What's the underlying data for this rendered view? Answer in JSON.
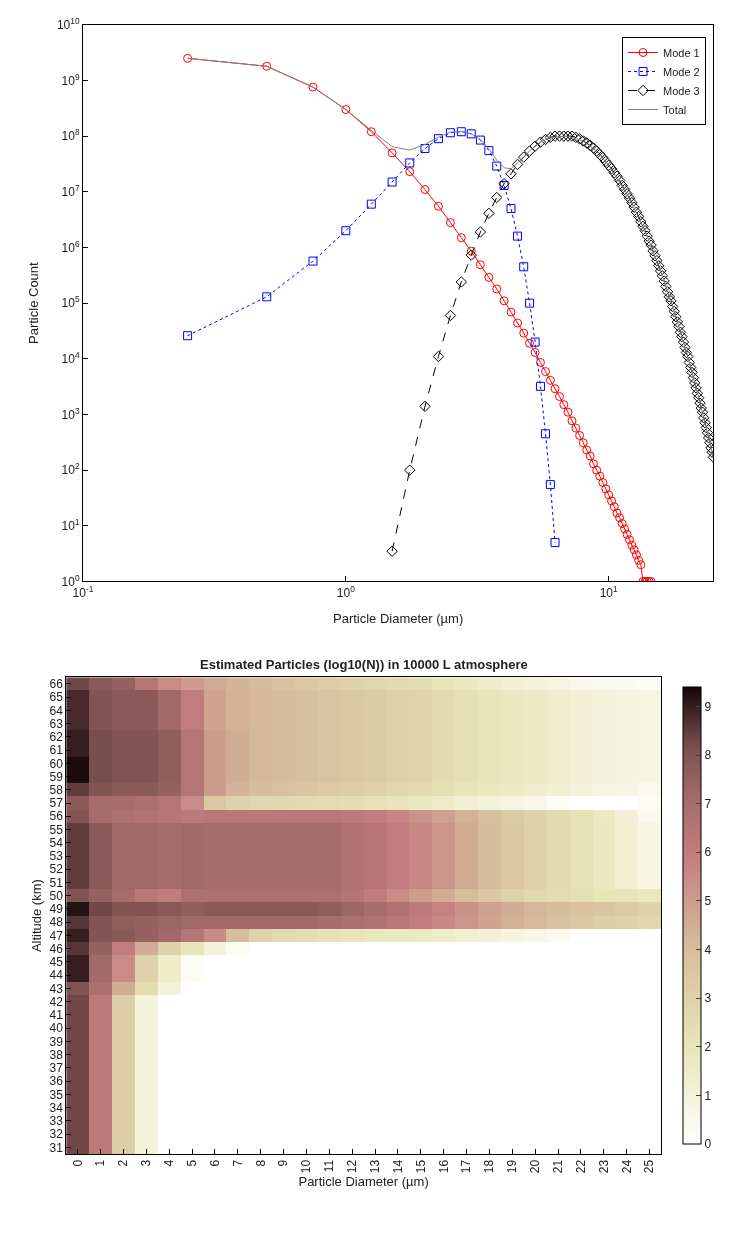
{
  "chart_data": [
    {
      "type": "line",
      "xlabel": "Particle Diameter (µm)",
      "ylabel": "Particle Count",
      "log": "xy",
      "legend": "top right",
      "xlim": [
        0.1,
        25
      ],
      "ylim": [
        1,
        10000000000
      ],
      "xticks": [
        {
          "value": 0.1,
          "label": "10$^{-1}$"
        },
        {
          "value": 1,
          "label": "10$^{0}$"
        },
        {
          "value": 10,
          "label": "10$^{1}$"
        }
      ],
      "yticks": [
        {
          "value": 1,
          "label": "10$^{0}$"
        },
        {
          "value": 10,
          "label": "10$^{1}$"
        },
        {
          "value": 100,
          "label": "10$^{2}$"
        },
        {
          "value": 1000,
          "label": "10$^{3}$"
        },
        {
          "value": 10000,
          "label": "10$^{4}$"
        },
        {
          "value": 100000,
          "label": "10$^{5}$"
        },
        {
          "value": 1000000,
          "label": "10$^{6}$"
        },
        {
          "value": 10000000,
          "label": "10$^{7}$"
        },
        {
          "value": 100000000,
          "label": "10$^{8}$"
        },
        {
          "value": 1000000000,
          "label": "10$^{9}$"
        },
        {
          "value": 10000000000,
          "label": "10$^{10}$"
        }
      ],
      "series": [
        {
          "name": "Mode 1",
          "color": "#ff0000",
          "marker": "circle",
          "line_style": "solid",
          "x": [
            0.25,
            0.5,
            0.75,
            1.0,
            1.25,
            1.5,
            1.75,
            2.0,
            2.25,
            2.5,
            2.75,
            3.0,
            3.25,
            3.5,
            3.75,
            4.0,
            4.25,
            4.5,
            4.75,
            5.0,
            5.25,
            5.5,
            5.75,
            6.0,
            6.25,
            6.5,
            6.75,
            7.0,
            7.25,
            7.5,
            7.75,
            8.0,
            8.25,
            8.5,
            8.75,
            9.0,
            9.25,
            9.5,
            9.75,
            10.0,
            10.25,
            10.5,
            10.75,
            11.0,
            11.25,
            11.5,
            11.75,
            12.0,
            12.25,
            12.5,
            12.75,
            13.0,
            13.25,
            13.5,
            13.75,
            14.0,
            14.25,
            14.5
          ],
          "values": [
            2500000000,
            1800000000,
            760000000,
            300000000,
            120000000,
            50000000,
            23000000,
            11000000,
            5500000,
            2800000,
            1500000,
            860000,
            490000,
            290000,
            180000,
            110000,
            69000,
            44000,
            29000,
            19000,
            13000,
            8600,
            5900,
            4100,
            2900,
            2100,
            1500,
            1100,
            770,
            570,
            420,
            310,
            230,
            180,
            130,
            100,
            78,
            60,
            46,
            36,
            28,
            22,
            17,
            14,
            11,
            8.8,
            7.0,
            5.6,
            4.5,
            3.7,
            3.0,
            2.4,
            2.0,
            1,
            1,
            1,
            1,
            1
          ]
        },
        {
          "name": "Mode 2",
          "color": "#0000ff",
          "marker": "square",
          "line_style": "dotted",
          "x": [
            0.25,
            0.5,
            0.75,
            1.0,
            1.25,
            1.5,
            1.75,
            2.0,
            2.25,
            2.5,
            2.75,
            3.0,
            3.25,
            3.5,
            3.75,
            4.0,
            4.25,
            4.5,
            4.75,
            5.0,
            5.25,
            5.5,
            5.75,
            6.0,
            6.25
          ],
          "values": [
            26000,
            130000,
            570000,
            2000000,
            6000000,
            15000000,
            33000000,
            60000000,
            90000000,
            115000000,
            120000000,
            110000000,
            85000000,
            55000000,
            29000000,
            13000000,
            5000000,
            1600000,
            450000,
            100000,
            20000,
            3200,
            450,
            55,
            5
          ]
        },
        {
          "name": "Mode 3",
          "color": "#000000",
          "marker": "diamond",
          "line_style": "dashed",
          "x": [
            1.5,
            1.75,
            2.0,
            2.25,
            2.5,
            2.75,
            3.0,
            3.25,
            3.5,
            3.75,
            4.0,
            4.25,
            4.5,
            4.75,
            5.0,
            5.25,
            5.5,
            5.75,
            6.0,
            6.25,
            6.5,
            6.75,
            7.0,
            7.25,
            7.5,
            7.75,
            8.0,
            8.25,
            8.5,
            8.75,
            9.0,
            9.25,
            9.5,
            9.75,
            10.0,
            10.25,
            10.5,
            10.75,
            11.0,
            11.25,
            11.5,
            11.75,
            12.0,
            12.25,
            12.5,
            12.75,
            13.0,
            13.25,
            13.5,
            13.75,
            14.0,
            14.25,
            14.5,
            14.75,
            15.0,
            15.25,
            15.5,
            15.75,
            16.0,
            16.25,
            16.5,
            16.75,
            17.0,
            17.25,
            17.5,
            17.75,
            18.0,
            18.25,
            18.5,
            18.75,
            19.0,
            19.25,
            19.5,
            19.75,
            20.0,
            20.25,
            20.5,
            20.75,
            21.0,
            21.25,
            21.5,
            21.75,
            22.0,
            22.25,
            22.5,
            22.75,
            23.0,
            23.25,
            23.5,
            23.75,
            24.0,
            24.25,
            24.5,
            24.75,
            25.0
          ],
          "values": [
            3.5,
            100,
            1400,
            11000,
            60000,
            240000,
            730000,
            1900000,
            4100000,
            7900000,
            14000000,
            21000000,
            31000000,
            42000000,
            54000000,
            66000000,
            78000000,
            87000000,
            95000000,
            100000000,
            100000000,
            100000000,
            100000000,
            100000000,
            95000000,
            89000000,
            82000000,
            75000000,
            68000000,
            61000000,
            54000000,
            47000000,
            41000000,
            35000000,
            30000000,
            26000000,
            22000000,
            19000000,
            16000000,
            13000000,
            11000000,
            9200000,
            7700000,
            6400000,
            5300000,
            4300000,
            3600000,
            2900000,
            2400000,
            2000000,
            1600000,
            1300000,
            1100000,
            870000,
            710000,
            580000,
            470000,
            380000,
            310000,
            250000,
            200000,
            160000,
            130000,
            110000,
            87000,
            71000,
            57000,
            46000,
            38000,
            30000,
            25000,
            20000,
            16000,
            13000,
            11000,
            8600,
            7000,
            5700,
            4600,
            3700,
            3000,
            2400,
            2000,
            1600,
            1300,
            1100,
            870,
            710,
            580,
            470,
            380,
            310,
            250,
            210,
            170
          ]
        },
        {
          "name": "Total",
          "color": "#808080",
          "marker": "none",
          "line_style": "solid",
          "x": [
            0.25,
            0.5,
            0.75,
            1.0,
            1.25,
            1.5,
            1.75,
            2.0,
            2.25,
            2.5,
            2.75,
            3.0,
            3.25,
            3.5,
            3.75,
            4.0,
            4.25,
            4.5,
            4.75,
            5.0,
            5.5,
            6.0,
            7.0,
            8.0,
            9.0,
            10.0,
            12.0,
            14.0,
            16.0,
            18.0,
            20.0,
            22.0,
            24.0,
            25.0
          ],
          "values": [
            2500000000,
            1800000000,
            760000000,
            300000000,
            126000000,
            65000000,
            56000000,
            71000000,
            96000000,
            118000000,
            122000000,
            110000000,
            87000000,
            59000000,
            37000000,
            27000000,
            26000000,
            33000000,
            42000000,
            54000000,
            78000000,
            95000000,
            100000000,
            82000000,
            54000000,
            30000000,
            7700000,
            1600000,
            310000,
            57000,
            11000,
            2000,
            380,
            170
          ]
        }
      ]
    },
    {
      "type": "heatmap",
      "title": "Estimated Particles (log10(N)) in 10000 L atmosphere",
      "xlabel": "Particle Diameter (µm)",
      "ylabel": "Altitude (km)",
      "categories": [
        "0",
        "1",
        "2",
        "3",
        "4",
        "5",
        "6",
        "7",
        "8",
        "9",
        "10",
        "11",
        "12",
        "13",
        "14",
        "15",
        "16",
        "17",
        "18",
        "19",
        "20",
        "21",
        "22",
        "23",
        "24",
        "25"
      ],
      "y_categories": [
        "66",
        "65",
        "64",
        "63",
        "62",
        "61",
        "60",
        "59",
        "58",
        "57",
        "56",
        "55",
        "54",
        "53",
        "52",
        "51",
        "50",
        "49",
        "48",
        "47",
        "46",
        "45",
        "44",
        "43",
        "42",
        "41",
        "40",
        "39",
        "38",
        "37",
        "36",
        "35",
        "34",
        "33",
        "32",
        "31"
      ],
      "clim": [
        0,
        9.4
      ],
      "cticks": [
        0,
        1,
        2,
        3,
        4,
        5,
        6,
        7,
        8,
        9
      ],
      "cells": [
        [
          8.3,
          7.8,
          7.5,
          6.5,
          5.5,
          5.0,
          4.6,
          4.3,
          4.1,
          3.8,
          3.5,
          3.2,
          3.0,
          2.8,
          2.6,
          2.4,
          2.1,
          1.8,
          1.5,
          1.2,
          1.0,
          0.8,
          0.6,
          0.5,
          0.4,
          0.3
        ],
        [
          8.8,
          8.0,
          7.8,
          7.8,
          7.2,
          6.0,
          4.8,
          4.4,
          4.2,
          4.0,
          3.9,
          3.7,
          3.5,
          3.3,
          3.1,
          2.9,
          2.6,
          2.3,
          2.0,
          1.8,
          1.6,
          1.4,
          1.2,
          1.0,
          0.9,
          0.8
        ],
        [
          8.8,
          8.0,
          7.8,
          7.8,
          7.2,
          6.0,
          4.8,
          4.4,
          4.2,
          4.0,
          3.9,
          3.7,
          3.5,
          3.3,
          3.1,
          2.9,
          2.6,
          2.3,
          2.0,
          1.8,
          1.6,
          1.4,
          1.2,
          1.0,
          0.9,
          0.8
        ],
        [
          8.8,
          8.0,
          7.8,
          7.8,
          7.2,
          6.0,
          4.8,
          4.4,
          4.2,
          4.0,
          3.9,
          3.7,
          3.5,
          3.3,
          3.1,
          2.9,
          2.6,
          2.3,
          2.0,
          1.8,
          1.6,
          1.4,
          1.2,
          1.0,
          0.9,
          0.8
        ],
        [
          9.0,
          8.2,
          8.0,
          8.0,
          7.6,
          6.5,
          5.0,
          4.5,
          4.2,
          4.0,
          3.9,
          3.7,
          3.5,
          3.3,
          3.1,
          2.9,
          2.6,
          2.3,
          2.0,
          1.8,
          1.6,
          1.4,
          1.2,
          1.0,
          0.9,
          0.8
        ],
        [
          9.0,
          8.2,
          8.0,
          8.0,
          7.6,
          6.5,
          5.0,
          4.5,
          4.2,
          4.0,
          3.9,
          3.7,
          3.5,
          3.3,
          3.1,
          2.9,
          2.6,
          2.3,
          2.0,
          1.8,
          1.6,
          1.4,
          1.2,
          1.0,
          0.9,
          0.8
        ],
        [
          9.3,
          8.2,
          8.0,
          8.0,
          7.6,
          6.5,
          5.0,
          4.5,
          4.2,
          4.0,
          3.9,
          3.7,
          3.5,
          3.3,
          3.1,
          2.9,
          2.6,
          2.3,
          2.0,
          1.8,
          1.6,
          1.4,
          1.2,
          1.0,
          0.9,
          0.8
        ],
        [
          9.3,
          8.2,
          8.0,
          8.0,
          7.6,
          6.5,
          5.0,
          4.5,
          4.2,
          4.0,
          3.9,
          3.7,
          3.5,
          3.3,
          3.1,
          2.9,
          2.6,
          2.3,
          2.0,
          1.8,
          1.6,
          1.4,
          1.2,
          1.0,
          0.9,
          0.8
        ],
        [
          8.5,
          8.0,
          7.8,
          7.8,
          7.5,
          6.5,
          5.0,
          4.3,
          4.0,
          3.8,
          3.6,
          3.4,
          3.2,
          3.0,
          2.8,
          2.6,
          2.3,
          2.0,
          1.8,
          1.6,
          1.4,
          1.2,
          1.0,
          0.8,
          0.7,
          0.5
        ],
        [
          7.8,
          7.0,
          7.0,
          6.8,
          6.5,
          5.5,
          3.5,
          3.0,
          2.8,
          2.7,
          2.6,
          2.5,
          2.4,
          2.2,
          2.0,
          1.8,
          1.5,
          1.2,
          1.0,
          0.8,
          0.6,
          0.3,
          0,
          0,
          0,
          0.3
        ],
        [
          8.0,
          7.0,
          6.8,
          6.6,
          6.4,
          6.2,
          6.3,
          6.3,
          6.3,
          6.3,
          6.3,
          6.3,
          6.2,
          6.0,
          5.7,
          5.3,
          4.9,
          4.4,
          3.9,
          3.4,
          3.0,
          2.6,
          2.2,
          1.7,
          1.1,
          0.5
        ],
        [
          8.5,
          7.8,
          7.2,
          7.2,
          7.0,
          7.2,
          7.0,
          7.0,
          7.0,
          7.0,
          7.0,
          7.0,
          6.7,
          6.4,
          6.0,
          5.6,
          5.2,
          4.6,
          4.0,
          3.5,
          3.0,
          2.6,
          2.2,
          1.8,
          1.3,
          0.8
        ],
        [
          8.5,
          7.8,
          7.2,
          7.2,
          7.0,
          7.2,
          7.0,
          7.0,
          7.0,
          7.0,
          7.0,
          7.0,
          6.7,
          6.4,
          6.0,
          5.6,
          5.2,
          4.6,
          4.0,
          3.5,
          3.0,
          2.6,
          2.2,
          1.8,
          1.3,
          0.8
        ],
        [
          8.5,
          7.8,
          7.2,
          7.2,
          7.0,
          7.2,
          7.0,
          7.0,
          7.0,
          7.0,
          7.0,
          7.0,
          6.7,
          6.4,
          6.0,
          5.6,
          5.2,
          4.6,
          4.0,
          3.5,
          3.0,
          2.6,
          2.2,
          1.8,
          1.3,
          0.8
        ],
        [
          8.5,
          7.8,
          7.2,
          7.2,
          7.0,
          7.2,
          7.0,
          7.0,
          7.0,
          7.0,
          7.0,
          7.0,
          6.7,
          6.4,
          6.0,
          5.6,
          5.2,
          4.6,
          4.0,
          3.5,
          3.0,
          2.6,
          2.2,
          1.8,
          1.3,
          0.8
        ],
        [
          8.5,
          7.8,
          7.2,
          7.2,
          7.0,
          7.2,
          7.0,
          7.0,
          7.0,
          7.0,
          7.0,
          7.0,
          6.7,
          6.4,
          6.0,
          5.6,
          5.2,
          4.6,
          4.0,
          3.5,
          3.0,
          2.6,
          2.2,
          1.8,
          1.3,
          0.8
        ],
        [
          8.0,
          7.5,
          7.0,
          6.3,
          6.0,
          6.8,
          6.8,
          6.8,
          6.8,
          6.8,
          6.8,
          6.8,
          6.5,
          6.0,
          5.5,
          5.0,
          4.5,
          4.0,
          3.5,
          3.0,
          2.7,
          2.5,
          2.3,
          2.1,
          2.0,
          1.8
        ],
        [
          9.2,
          8.3,
          8.0,
          8.0,
          7.8,
          7.6,
          7.8,
          7.8,
          7.8,
          7.8,
          7.8,
          7.6,
          7.3,
          7.0,
          6.7,
          6.2,
          5.8,
          5.3,
          4.9,
          4.5,
          4.2,
          4.0,
          3.8,
          3.6,
          3.3,
          3.0
        ],
        [
          8.6,
          8.0,
          7.6,
          7.5,
          7.3,
          7.2,
          7.2,
          7.2,
          7.2,
          7.2,
          7.2,
          7.0,
          6.8,
          6.6,
          6.3,
          6.0,
          5.6,
          5.2,
          4.8,
          4.4,
          4.1,
          3.8,
          3.5,
          3.2,
          3.0,
          2.8
        ],
        [
          9.0,
          8.0,
          7.8,
          7.5,
          7.2,
          6.5,
          5.5,
          4.0,
          3.0,
          2.6,
          2.4,
          2.2,
          2.0,
          1.9,
          1.8,
          1.7,
          1.5,
          1.3,
          1.1,
          0.9,
          0.7,
          0.5,
          0,
          0,
          0,
          0
        ],
        [
          8.6,
          7.5,
          6.0,
          4.5,
          3.0,
          2.0,
          1.0,
          0.3,
          0,
          0,
          0,
          0,
          0,
          0,
          0,
          0,
          0,
          0,
          0,
          0,
          0,
          0,
          0,
          0,
          0,
          0
        ],
        [
          9.0,
          7.2,
          5.5,
          3.0,
          1.5,
          0.3,
          0,
          0,
          0,
          0,
          0,
          0,
          0,
          0,
          0,
          0,
          0,
          0,
          0,
          0,
          0,
          0,
          0,
          0,
          0,
          0
        ],
        [
          9.0,
          7.2,
          5.5,
          3.0,
          1.5,
          0.3,
          0,
          0,
          0,
          0,
          0,
          0,
          0,
          0,
          0,
          0,
          0,
          0,
          0,
          0,
          0,
          0,
          0,
          0,
          0,
          0
        ],
        [
          8.0,
          6.8,
          4.5,
          2.5,
          1.0,
          0,
          0,
          0,
          0,
          0,
          0,
          0,
          0,
          0,
          0,
          0,
          0,
          0,
          0,
          0,
          0,
          0,
          0,
          0,
          0,
          0
        ],
        [
          8.3,
          6.2,
          3.2,
          1.0,
          0,
          0,
          0,
          0,
          0,
          0,
          0,
          0,
          0,
          0,
          0,
          0,
          0,
          0,
          0,
          0,
          0,
          0,
          0,
          0,
          0,
          0
        ],
        [
          8.3,
          6.2,
          3.2,
          1.0,
          0,
          0,
          0,
          0,
          0,
          0,
          0,
          0,
          0,
          0,
          0,
          0,
          0,
          0,
          0,
          0,
          0,
          0,
          0,
          0,
          0,
          0
        ],
        [
          8.3,
          6.2,
          3.2,
          1.0,
          0,
          0,
          0,
          0,
          0,
          0,
          0,
          0,
          0,
          0,
          0,
          0,
          0,
          0,
          0,
          0,
          0,
          0,
          0,
          0,
          0,
          0
        ],
        [
          8.3,
          6.2,
          3.2,
          1.0,
          0,
          0,
          0,
          0,
          0,
          0,
          0,
          0,
          0,
          0,
          0,
          0,
          0,
          0,
          0,
          0,
          0,
          0,
          0,
          0,
          0,
          0
        ],
        [
          8.3,
          6.2,
          3.2,
          1.0,
          0,
          0,
          0,
          0,
          0,
          0,
          0,
          0,
          0,
          0,
          0,
          0,
          0,
          0,
          0,
          0,
          0,
          0,
          0,
          0,
          0,
          0
        ],
        [
          8.3,
          6.2,
          3.2,
          1.0,
          0,
          0,
          0,
          0,
          0,
          0,
          0,
          0,
          0,
          0,
          0,
          0,
          0,
          0,
          0,
          0,
          0,
          0,
          0,
          0,
          0,
          0
        ],
        [
          8.3,
          6.2,
          3.2,
          1.0,
          0,
          0,
          0,
          0,
          0,
          0,
          0,
          0,
          0,
          0,
          0,
          0,
          0,
          0,
          0,
          0,
          0,
          0,
          0,
          0,
          0,
          0
        ],
        [
          8.3,
          6.2,
          3.2,
          1.0,
          0,
          0,
          0,
          0,
          0,
          0,
          0,
          0,
          0,
          0,
          0,
          0,
          0,
          0,
          0,
          0,
          0,
          0,
          0,
          0,
          0,
          0
        ],
        [
          8.3,
          6.2,
          3.2,
          1.0,
          0,
          0,
          0,
          0,
          0,
          0,
          0,
          0,
          0,
          0,
          0,
          0,
          0,
          0,
          0,
          0,
          0,
          0,
          0,
          0,
          0,
          0
        ],
        [
          8.3,
          6.2,
          3.2,
          1.0,
          0,
          0,
          0,
          0,
          0,
          0,
          0,
          0,
          0,
          0,
          0,
          0,
          0,
          0,
          0,
          0,
          0,
          0,
          0,
          0,
          0,
          0
        ],
        [
          8.3,
          6.2,
          3.2,
          1.0,
          0,
          0,
          0,
          0,
          0,
          0,
          0,
          0,
          0,
          0,
          0,
          0,
          0,
          0,
          0,
          0,
          0,
          0,
          0,
          0,
          0,
          0
        ],
        [
          8.3,
          6.2,
          3.2,
          1.0,
          0,
          0,
          0,
          0,
          0,
          0,
          0,
          0,
          0,
          0,
          0,
          0,
          0,
          0,
          0,
          0,
          0,
          0,
          0,
          0,
          0,
          0
        ]
      ]
    }
  ]
}
